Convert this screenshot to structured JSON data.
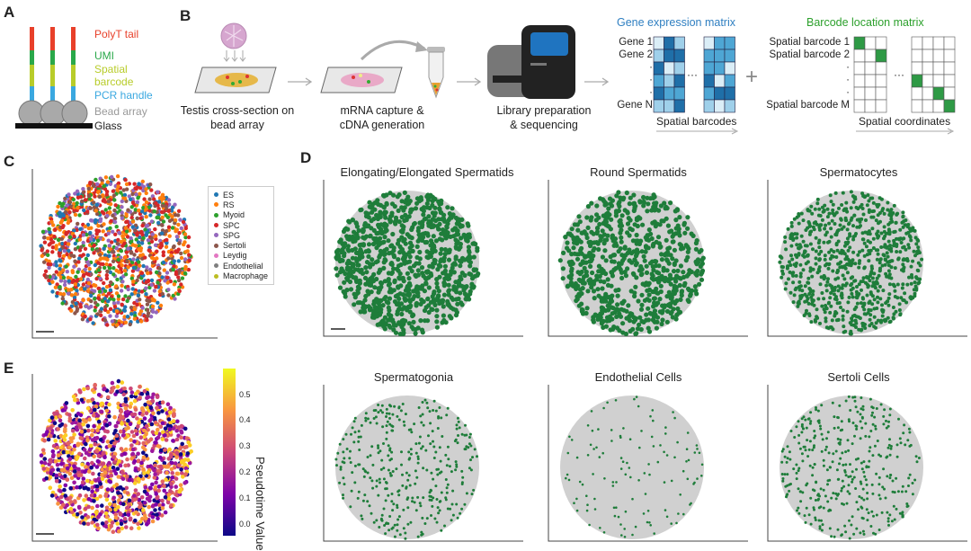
{
  "panels": {
    "a": "A",
    "b": "B",
    "c": "C",
    "d": "D",
    "e": "E"
  },
  "panel_a": {
    "labels": [
      {
        "text": "PolyT tail",
        "color": "#e8402a"
      },
      {
        "text": "UMI",
        "color": "#2aa84a"
      },
      {
        "text": "Spatial",
        "color": "#b8cc2a"
      },
      {
        "text": "barcode",
        "color": "#b8cc2a"
      },
      {
        "text": "PCR handle",
        "color": "#3aa8e0"
      },
      {
        "text": "Bead array",
        "color": "#999999"
      },
      {
        "text": "Glass",
        "color": "#222222"
      }
    ]
  },
  "panel_b": {
    "step1": [
      "Testis cross-section on",
      "bead array"
    ],
    "step2": [
      "mRNA capture &",
      "cDNA generation"
    ],
    "step3": [
      "Library preparation",
      "& sequencing"
    ],
    "gene_matrix": {
      "title": "Gene expression matrix",
      "rows": [
        "Gene 1",
        "Gene 2",
        "·",
        "·",
        "·",
        "Gene N"
      ],
      "footer": "Spatial barcodes",
      "ellipsis": "···"
    },
    "plus": "+",
    "barcode_matrix": {
      "title": "Barcode location matrix",
      "rows": [
        "Spatial barcode 1",
        "Spatial barcode 2",
        "·",
        "·",
        "·",
        "Spatial barcode M"
      ],
      "footer": "Spatial coordinates",
      "ellipsis": "···"
    }
  },
  "panel_c": {
    "legend": [
      {
        "label": "ES",
        "color": "#1f77b4"
      },
      {
        "label": "RS",
        "color": "#ff7f0e"
      },
      {
        "label": "Myoid",
        "color": "#2ca02c"
      },
      {
        "label": "SPC",
        "color": "#d62728"
      },
      {
        "label": "SPG",
        "color": "#9467bd"
      },
      {
        "label": "Sertoli",
        "color": "#8c564b"
      },
      {
        "label": "Leydig",
        "color": "#e377c2"
      },
      {
        "label": "Endothelial",
        "color": "#7f7f7f"
      },
      {
        "label": "Macrophage",
        "color": "#bcbd22"
      }
    ]
  },
  "panel_d": {
    "titles": [
      "Elongating/Elongated Spermatids",
      "Round Spermatids",
      "Spermatocytes",
      "Spermatogonia",
      "Endothelial Cells",
      "Sertoli Cells"
    ]
  },
  "panel_e": {
    "colorbar_label": "Pseudotime Value",
    "ticks": [
      "0.5",
      "0.4",
      "0.3",
      "0.2",
      "0.1",
      "0.0"
    ]
  },
  "colors": {
    "green": "#1e7d3a",
    "grey": "#cfcfcf",
    "blue_text": "#2f7fc1",
    "green_text": "#2ca02c"
  }
}
